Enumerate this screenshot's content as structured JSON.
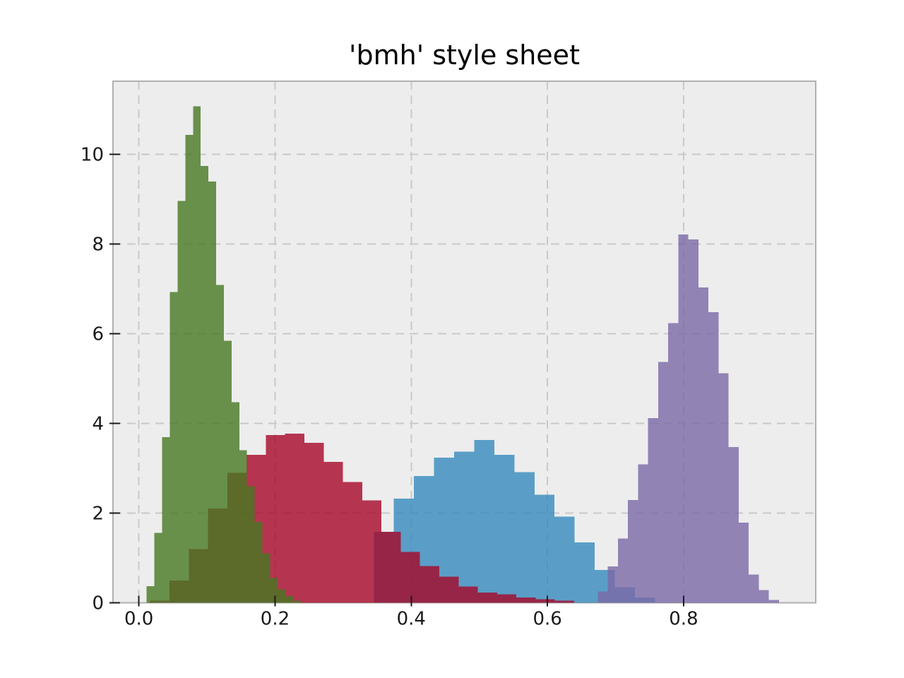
{
  "chart_data": {
    "type": "histogram",
    "title": "'bmh' style sheet",
    "style_sheet": "bmh",
    "xlabel": "",
    "ylabel": "",
    "xlim": [
      -0.038,
      0.994
    ],
    "ylim": [
      0,
      11.63
    ],
    "xticks": [
      0.0,
      0.2,
      0.4,
      0.6,
      0.8
    ],
    "xtick_labels": [
      "0.0",
      "0.2",
      "0.4",
      "0.6",
      "0.8"
    ],
    "yticks": [
      0,
      2,
      4,
      6,
      8,
      10
    ],
    "ytick_labels": [
      "0",
      "2",
      "4",
      "6",
      "8",
      "10"
    ],
    "grid": {
      "visible": true,
      "linestyle": "dashed",
      "color": "#c9c9c9"
    },
    "legend": {
      "visible": false
    },
    "colors": {
      "figure_background": "#ffffff",
      "axes_background": "#ededed",
      "spine": "#b0b0b0",
      "tick": "#1a1a1a",
      "title_text": "#000000"
    },
    "bar_alpha": 0.8,
    "histtype": "stepfilled",
    "series": [
      {
        "name": "blue-histogram",
        "color": "#348ABD",
        "bin_start": 0.345,
        "bin_width": 0.0295,
        "heights": [
          1.58,
          2.32,
          2.83,
          3.24,
          3.37,
          3.63,
          3.3,
          2.91,
          2.41,
          1.92,
          1.35,
          0.73,
          0.35,
          0.12
        ]
      },
      {
        "name": "red-histogram",
        "color": "#A60628",
        "bin_start": 0.0167,
        "bin_width": 0.0283,
        "heights": [
          0.05,
          0.5,
          1.2,
          2.1,
          2.9,
          3.3,
          3.74,
          3.77,
          3.57,
          3.14,
          2.69,
          2.28,
          1.58,
          1.13,
          0.82,
          0.58,
          0.36,
          0.23,
          0.19,
          0.12,
          0.08,
          0.05
        ]
      },
      {
        "name": "purple-histogram",
        "color": "#7A68A6",
        "bin_start": 0.674,
        "bin_width": 0.01478,
        "heights": [
          0.25,
          0.81,
          1.43,
          2.29,
          3.09,
          4.12,
          5.37,
          6.24,
          8.21,
          8.1,
          7.03,
          6.48,
          5.12,
          3.47,
          1.79,
          0.63,
          0.28,
          0.06
        ]
      },
      {
        "name": "green-histogram",
        "color": "#467821",
        "bin_start": 0.0115,
        "bin_width": 0.01133,
        "heights": [
          0.37,
          1.56,
          3.69,
          6.93,
          8.96,
          10.43,
          11.07,
          9.74,
          9.39,
          7.09,
          5.84,
          4.47,
          3.4,
          2.6,
          1.8,
          1.1,
          0.55,
          0.3,
          0.15,
          0.05
        ]
      }
    ]
  }
}
